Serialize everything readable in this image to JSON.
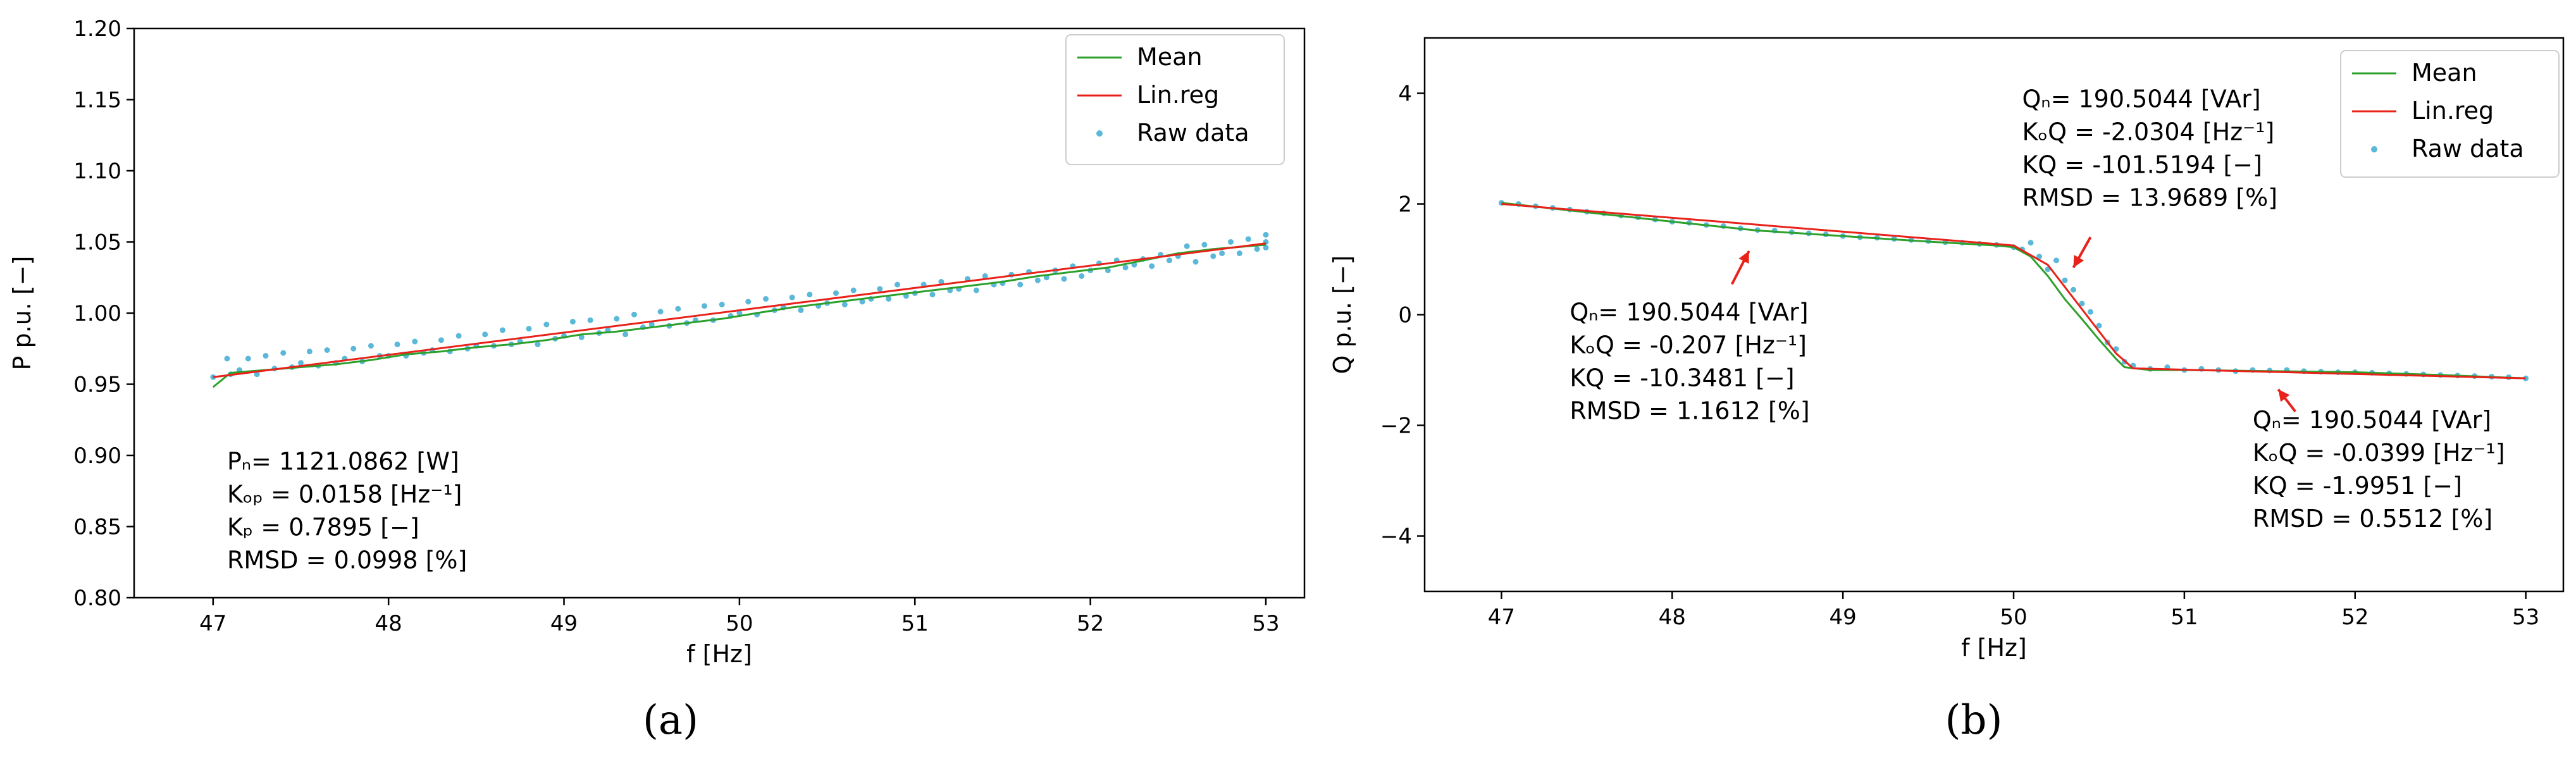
{
  "colors": {
    "mean": "#2ca02c",
    "linreg": "#e8221a",
    "raw": "#5bb8d8",
    "arrow": "#e8221a"
  },
  "legend": [
    "Mean",
    "Lin.reg",
    "Raw data"
  ],
  "chart_data": [
    {
      "panel": "(a)",
      "type": "line",
      "xlabel": "f [Hz]",
      "ylabel": "P p.u. [−]",
      "xlim": [
        46.55,
        53.22
      ],
      "ylim": [
        0.8,
        1.2
      ],
      "xticks": [
        "47",
        "48",
        "49",
        "50",
        "51",
        "52",
        "53"
      ],
      "yticks": [
        "0.80",
        "0.85",
        "0.90",
        "0.95",
        "1.00",
        "1.05",
        "1.10",
        "1.15",
        "1.20"
      ],
      "legend_position": "top-right",
      "series": [
        {
          "name": "Mean",
          "x": [
            47.0,
            47.1,
            47.3,
            47.5,
            47.7,
            47.9,
            48.1,
            48.3,
            48.5,
            48.7,
            48.9,
            49.1,
            49.3,
            49.5,
            49.7,
            49.9,
            50.1,
            50.3,
            50.5,
            50.7,
            50.9,
            51.1,
            51.3,
            51.5,
            51.7,
            51.9,
            52.1,
            52.3,
            52.5,
            52.7,
            52.9,
            53.0
          ],
          "y": [
            0.948,
            0.958,
            0.96,
            0.962,
            0.964,
            0.967,
            0.971,
            0.973,
            0.976,
            0.978,
            0.981,
            0.985,
            0.987,
            0.99,
            0.993,
            0.996,
            1.0,
            1.004,
            1.007,
            1.01,
            1.013,
            1.016,
            1.019,
            1.022,
            1.026,
            1.029,
            1.032,
            1.037,
            1.042,
            1.045,
            1.047,
            1.048
          ]
        },
        {
          "name": "Lin.reg",
          "x": [
            47.0,
            53.0
          ],
          "y": [
            0.955,
            1.049
          ]
        },
        {
          "name": "Raw data",
          "x": [
            47.0,
            47.08,
            47.1,
            47.15,
            47.2,
            47.25,
            47.3,
            47.35,
            47.4,
            47.45,
            47.5,
            47.55,
            47.6,
            47.65,
            47.7,
            47.75,
            47.8,
            47.85,
            47.9,
            47.95,
            48.0,
            48.05,
            48.1,
            48.15,
            48.2,
            48.25,
            48.3,
            48.35,
            48.4,
            48.45,
            48.5,
            48.55,
            48.6,
            48.65,
            48.7,
            48.75,
            48.8,
            48.85,
            48.9,
            48.95,
            49.0,
            49.05,
            49.1,
            49.15,
            49.2,
            49.25,
            49.3,
            49.35,
            49.4,
            49.45,
            49.5,
            49.55,
            49.6,
            49.65,
            49.7,
            49.75,
            49.8,
            49.85,
            49.9,
            49.95,
            50.0,
            50.05,
            50.1,
            50.15,
            50.2,
            50.25,
            50.3,
            50.35,
            50.4,
            50.45,
            50.5,
            50.55,
            50.6,
            50.65,
            50.7,
            50.75,
            50.8,
            50.85,
            50.9,
            50.95,
            51.0,
            51.05,
            51.1,
            51.15,
            51.2,
            51.25,
            51.3,
            51.35,
            51.4,
            51.45,
            51.5,
            51.55,
            51.6,
            51.65,
            51.7,
            51.75,
            51.8,
            51.85,
            51.9,
            51.95,
            52.0,
            52.05,
            52.1,
            52.15,
            52.2,
            52.25,
            52.3,
            52.35,
            52.4,
            52.45,
            52.5,
            52.55,
            52.6,
            52.65,
            52.7,
            52.75,
            52.8,
            52.85,
            52.9,
            52.95,
            53.0,
            53.0,
            53.0
          ],
          "y": [
            0.955,
            0.968,
            0.957,
            0.96,
            0.968,
            0.957,
            0.97,
            0.961,
            0.972,
            0.962,
            0.965,
            0.973,
            0.963,
            0.974,
            0.965,
            0.968,
            0.975,
            0.966,
            0.977,
            0.97,
            0.97,
            0.978,
            0.97,
            0.98,
            0.972,
            0.974,
            0.981,
            0.973,
            0.984,
            0.975,
            0.977,
            0.985,
            0.977,
            0.988,
            0.978,
            0.98,
            0.989,
            0.978,
            0.992,
            0.982,
            0.984,
            0.994,
            0.983,
            0.995,
            0.986,
            0.988,
            0.996,
            0.985,
            0.999,
            0.99,
            0.992,
            1.001,
            0.991,
            1.003,
            0.993,
            0.995,
            1.005,
            0.995,
            1.006,
            0.998,
            1.0,
            1.008,
            0.999,
            1.01,
            1.002,
            1.004,
            1.011,
            1.002,
            1.013,
            1.005,
            1.007,
            1.014,
            1.006,
            1.016,
            1.008,
            1.01,
            1.017,
            1.01,
            1.02,
            1.012,
            1.014,
            1.02,
            1.013,
            1.022,
            1.016,
            1.017,
            1.024,
            1.016,
            1.026,
            1.02,
            1.021,
            1.027,
            1.02,
            1.029,
            1.023,
            1.025,
            1.03,
            1.024,
            1.033,
            1.026,
            1.03,
            1.035,
            1.03,
            1.037,
            1.032,
            1.034,
            1.038,
            1.033,
            1.041,
            1.037,
            1.04,
            1.047,
            1.036,
            1.048,
            1.04,
            1.042,
            1.05,
            1.042,
            1.052,
            1.045,
            1.046,
            1.055,
            1.05
          ]
        }
      ],
      "annotations": [
        {
          "lines": [
            "Pₙ= 1121.0862 [W]",
            "Kₒₚ = 0.0158 [Hz⁻¹]",
            "Kₚ = 0.7895 [−]",
            "RMSD = 0.0998 [%]"
          ],
          "at": [
            47.08,
            0.89
          ]
        }
      ]
    },
    {
      "panel": "(b)",
      "type": "line",
      "xlabel": "f [Hz]",
      "ylabel": "Q p.u. [−]",
      "xlim": [
        46.55,
        53.22
      ],
      "ylim": [
        -5,
        5
      ],
      "xticks": [
        "47",
        "48",
        "49",
        "50",
        "51",
        "52",
        "53"
      ],
      "yticks": [
        "−4",
        "−2",
        "0",
        "2",
        "4"
      ],
      "legend_position": "top-right",
      "series": [
        {
          "name": "Mean",
          "x": [
            47.0,
            47.5,
            48.0,
            48.5,
            49.0,
            49.5,
            49.9,
            50.0,
            50.1,
            50.2,
            50.3,
            50.4,
            50.5,
            50.6,
            50.65,
            50.8,
            51.0,
            51.5,
            52.0,
            52.5,
            53.0
          ],
          "y": [
            2.02,
            1.85,
            1.68,
            1.52,
            1.42,
            1.32,
            1.25,
            1.22,
            1.05,
            0.7,
            0.28,
            -0.08,
            -0.45,
            -0.8,
            -0.95,
            -1.0,
            -1.0,
            -1.02,
            -1.04,
            -1.09,
            -1.15
          ]
        },
        {
          "name": "Lin.reg",
          "x": [
            47.0,
            50.0,
            50.2,
            50.6,
            50.7,
            53.0
          ],
          "y": [
            2.0,
            1.25,
            0.9,
            -0.7,
            -0.97,
            -1.15
          ]
        },
        {
          "name": "Raw data",
          "x": [
            47.0,
            47.1,
            47.2,
            47.3,
            47.4,
            47.5,
            47.6,
            47.7,
            47.8,
            47.9,
            48.0,
            48.1,
            48.2,
            48.3,
            48.4,
            48.5,
            48.6,
            48.7,
            48.8,
            48.9,
            49.0,
            49.1,
            49.2,
            49.3,
            49.4,
            49.5,
            49.6,
            49.7,
            49.8,
            49.9,
            50.0,
            50.05,
            50.1,
            50.15,
            50.2,
            50.25,
            50.3,
            50.35,
            50.4,
            50.45,
            50.5,
            50.55,
            50.6,
            50.65,
            50.7,
            50.8,
            50.9,
            51.0,
            51.1,
            51.2,
            51.3,
            51.4,
            51.5,
            51.6,
            51.7,
            51.8,
            51.9,
            52.0,
            52.1,
            52.2,
            52.3,
            52.4,
            52.5,
            52.6,
            52.7,
            52.8,
            52.9,
            53.0
          ],
          "y": [
            2.02,
            2.0,
            1.96,
            1.93,
            1.9,
            1.86,
            1.83,
            1.79,
            1.76,
            1.72,
            1.68,
            1.66,
            1.62,
            1.6,
            1.56,
            1.53,
            1.52,
            1.49,
            1.47,
            1.45,
            1.42,
            1.4,
            1.39,
            1.37,
            1.35,
            1.33,
            1.31,
            1.3,
            1.28,
            1.26,
            1.22,
            1.18,
            1.3,
            1.05,
            0.82,
            0.98,
            0.62,
            0.45,
            0.2,
            0.05,
            -0.2,
            -0.5,
            -0.62,
            -0.85,
            -0.92,
            -0.98,
            -0.95,
            -1.0,
            -0.98,
            -1.0,
            -1.02,
            -1.0,
            -1.01,
            -1.0,
            -1.02,
            -1.03,
            -1.04,
            -1.04,
            -1.05,
            -1.06,
            -1.07,
            -1.08,
            -1.09,
            -1.1,
            -1.11,
            -1.12,
            -1.13,
            -1.15
          ]
        }
      ],
      "annotations": [
        {
          "lines": [
            "Qₙ= 190.5044 [VAr]",
            "KₒQ = -0.207 [Hz⁻¹]",
            "KQ = -10.3481 [−]",
            "RMSD = 1.1612 [%]"
          ],
          "at": [
            47.4,
            -0.1
          ],
          "arrow_from": [
            48.35,
            0.55
          ],
          "arrow_to": [
            48.45,
            1.15
          ]
        },
        {
          "lines": [
            "Qₙ= 190.5044 [VAr]",
            "KₒQ = -2.0304 [Hz⁻¹]",
            "KQ = -101.5194 [−]",
            "RMSD = 13.9689 [%]"
          ],
          "at": [
            50.05,
            3.75
          ],
          "arrow_from": [
            50.45,
            1.4
          ],
          "arrow_to": [
            50.35,
            0.85
          ]
        },
        {
          "lines": [
            "Qₙ= 190.5044 [VAr]",
            "KₒQ = -0.0399 [Hz⁻¹]",
            "KQ = -1.9951 [−]",
            "RMSD = 0.5512 [%]"
          ],
          "at": [
            51.4,
            -2.05
          ],
          "arrow_from": [
            51.65,
            -1.75
          ],
          "arrow_to": [
            51.55,
            -1.35
          ]
        }
      ]
    }
  ],
  "annotation_a": [
    "Pₙ= 1121.0862 [W]",
    "Kₒₚ = 0.0158 [Hz⁻¹]",
    "Kₚ = 0.7895 [−]",
    "RMSD = 0.0998 [%]"
  ],
  "captions": [
    "(a)",
    "(b)"
  ]
}
